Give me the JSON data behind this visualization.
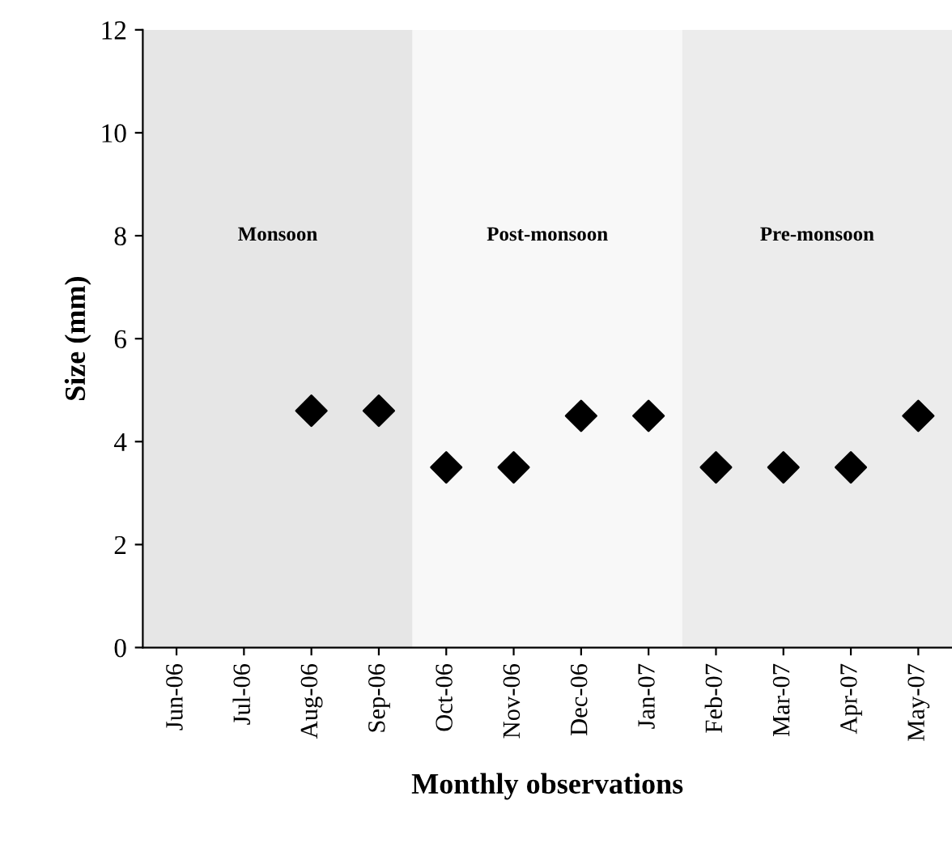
{
  "chart_data": {
    "type": "scatter",
    "xlabel": "Monthly observations",
    "ylabel": "Size (mm)",
    "categories": [
      "Jun-06",
      "Jul-06",
      "Aug-06",
      "Sep-06",
      "Oct-06",
      "Nov-06",
      "Dec-06",
      "Jan-07",
      "Feb-07",
      "Mar-07",
      "Apr-07",
      "May-07"
    ],
    "series": [
      {
        "color": "#000000",
        "values": [
          null,
          null,
          4.6,
          4.6,
          3.5,
          3.5,
          4.5,
          4.5,
          3.5,
          3.5,
          3.5,
          4.5
        ]
      }
    ],
    "marker": "diamond",
    "ylim": [
      0,
      12
    ],
    "yticks": [
      0,
      2,
      4,
      6,
      8,
      10,
      12
    ],
    "grid": false,
    "legend": false,
    "bands": [
      {
        "axis": "x",
        "from": "Jun-06",
        "to": "Sep-06",
        "label": "Monsoon",
        "color": "#e6e6e6"
      },
      {
        "axis": "x",
        "from": "Oct-06",
        "to": "Jan-07",
        "label": "Post-monsoon",
        "color": "#f8f8f8"
      },
      {
        "axis": "x",
        "from": "Feb-07",
        "to": "May-07",
        "label": "Pre-monsoon",
        "color": "#ececec"
      }
    ]
  }
}
